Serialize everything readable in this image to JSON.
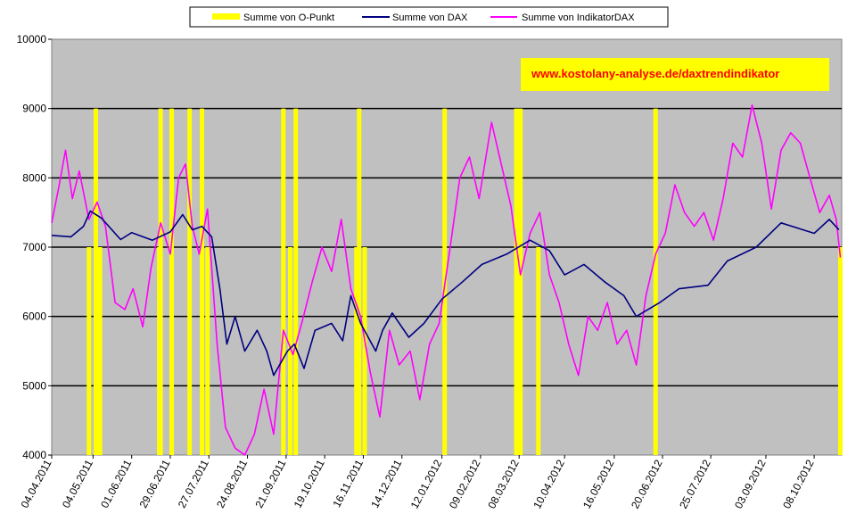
{
  "chart_data": {
    "type": "line",
    "annotation": "www.kostolany-analyse.de/daxtrendindikator",
    "ylim": [
      4000,
      10000
    ],
    "yticks": [
      4000,
      5000,
      6000,
      7000,
      8000,
      9000,
      10000
    ],
    "ytick_labels": [
      "4000",
      "5000",
      "6000",
      "7000",
      "8000",
      "9000",
      "10000"
    ],
    "x_tick_labels": [
      "04.04.2011",
      "04.05.2011",
      "01.06.2011",
      "29.06.2011",
      "27.07.2011",
      "24.08.2011",
      "21.09.2011",
      "19.10.2011",
      "16.11.2011",
      "14.12.2011",
      "12.01.2012",
      "09.02.2012",
      "08.03.2012",
      "10.04.2012",
      "16.05.2012",
      "20.06.2012",
      "25.07.2012",
      "03.09.2012",
      "08.10.2012"
    ],
    "grid": "horizontal",
    "legend_position": "top",
    "colors": {
      "plot_bg": "#c0c0c0",
      "opunkt": "#ffff00",
      "dax": "#000080",
      "indikator": "#ff00ff",
      "annotation_bg": "#ffff00",
      "annotation_text": "#ff0000"
    },
    "series": [
      {
        "name": "Summe von O-Punkt",
        "style": "vertical-bars",
        "points": [
          [
            "2011-05-01",
            7000
          ],
          [
            "2011-05-06",
            9000
          ],
          [
            "2011-05-09",
            7000
          ],
          [
            "2011-06-21",
            7000
          ],
          [
            "2011-06-22",
            9000
          ],
          [
            "2011-06-30",
            9000
          ],
          [
            "2011-07-13",
            9000
          ],
          [
            "2011-07-22",
            9000
          ],
          [
            "2011-07-26",
            7000
          ],
          [
            "2011-09-19",
            9000
          ],
          [
            "2011-09-24",
            7000
          ],
          [
            "2011-09-28",
            9000
          ],
          [
            "2011-11-11",
            7000
          ],
          [
            "2011-11-13",
            9000
          ],
          [
            "2011-11-17",
            7000
          ],
          [
            "2012-01-14",
            9000
          ],
          [
            "2012-03-06",
            9000
          ],
          [
            "2012-03-09",
            9000
          ],
          [
            "2012-03-22",
            7000
          ],
          [
            "2012-06-15",
            9000
          ],
          [
            "2012-10-27",
            7000
          ]
        ]
      },
      {
        "name": "Summe von DAX",
        "points": [
          [
            "2011-04-04",
            7170
          ],
          [
            "2011-04-18",
            7150
          ],
          [
            "2011-04-27",
            7300
          ],
          [
            "2011-05-02",
            7520
          ],
          [
            "2011-05-10",
            7420
          ],
          [
            "2011-05-24",
            7110
          ],
          [
            "2011-06-01",
            7210
          ],
          [
            "2011-06-16",
            7100
          ],
          [
            "2011-06-29",
            7220
          ],
          [
            "2011-07-08",
            7470
          ],
          [
            "2011-07-15",
            7250
          ],
          [
            "2011-07-22",
            7300
          ],
          [
            "2011-07-29",
            7150
          ],
          [
            "2011-08-04",
            6400
          ],
          [
            "2011-08-09",
            5600
          ],
          [
            "2011-08-15",
            6000
          ],
          [
            "2011-08-22",
            5500
          ],
          [
            "2011-08-31",
            5800
          ],
          [
            "2011-09-07",
            5500
          ],
          [
            "2011-09-12",
            5150
          ],
          [
            "2011-09-22",
            5500
          ],
          [
            "2011-09-27",
            5600
          ],
          [
            "2011-10-04",
            5250
          ],
          [
            "2011-10-12",
            5800
          ],
          [
            "2011-10-24",
            5900
          ],
          [
            "2011-11-01",
            5650
          ],
          [
            "2011-11-07",
            6300
          ],
          [
            "2011-11-14",
            5900
          ],
          [
            "2011-11-25",
            5500
          ],
          [
            "2011-11-30",
            5800
          ],
          [
            "2011-12-07",
            6050
          ],
          [
            "2011-12-19",
            5700
          ],
          [
            "2011-12-30",
            5900
          ],
          [
            "2012-01-12",
            6250
          ],
          [
            "2012-01-27",
            6500
          ],
          [
            "2012-02-10",
            6750
          ],
          [
            "2012-02-28",
            6900
          ],
          [
            "2012-03-16",
            7100
          ],
          [
            "2012-03-30",
            6950
          ],
          [
            "2012-04-10",
            6600
          ],
          [
            "2012-04-24",
            6750
          ],
          [
            "2012-05-09",
            6500
          ],
          [
            "2012-05-23",
            6300
          ],
          [
            "2012-06-01",
            6000
          ],
          [
            "2012-06-18",
            6200
          ],
          [
            "2012-07-02",
            6400
          ],
          [
            "2012-07-23",
            6450
          ],
          [
            "2012-08-06",
            6800
          ],
          [
            "2012-08-27",
            7000
          ],
          [
            "2012-09-14",
            7350
          ],
          [
            "2012-10-08",
            7200
          ],
          [
            "2012-10-19",
            7400
          ],
          [
            "2012-10-26",
            7250
          ]
        ]
      },
      {
        "name": "Summe von IndikatorDAX",
        "points": [
          [
            "2011-04-04",
            7350
          ],
          [
            "2011-04-09",
            7850
          ],
          [
            "2011-04-14",
            8400
          ],
          [
            "2011-04-19",
            7700
          ],
          [
            "2011-04-24",
            8100
          ],
          [
            "2011-05-01",
            7400
          ],
          [
            "2011-05-07",
            7650
          ],
          [
            "2011-05-13",
            7300
          ],
          [
            "2011-05-20",
            6200
          ],
          [
            "2011-05-27",
            6100
          ],
          [
            "2011-06-02",
            6400
          ],
          [
            "2011-06-09",
            5850
          ],
          [
            "2011-06-15",
            6700
          ],
          [
            "2011-06-22",
            7350
          ],
          [
            "2011-06-29",
            6900
          ],
          [
            "2011-07-05",
            8000
          ],
          [
            "2011-07-10",
            8200
          ],
          [
            "2011-07-15",
            7300
          ],
          [
            "2011-07-20",
            6900
          ],
          [
            "2011-07-26",
            7550
          ],
          [
            "2011-08-02",
            5600
          ],
          [
            "2011-08-08",
            4400
          ],
          [
            "2011-08-15",
            4100
          ],
          [
            "2011-08-22",
            3850
          ],
          [
            "2011-08-29",
            4300
          ],
          [
            "2011-09-05",
            4950
          ],
          [
            "2011-09-12",
            4300
          ],
          [
            "2011-09-19",
            5800
          ],
          [
            "2011-09-26",
            5450
          ],
          [
            "2011-10-03",
            5950
          ],
          [
            "2011-10-10",
            6500
          ],
          [
            "2011-10-17",
            7000
          ],
          [
            "2011-10-24",
            6650
          ],
          [
            "2011-10-31",
            7400
          ],
          [
            "2011-11-07",
            6400
          ],
          [
            "2011-11-14",
            6000
          ],
          [
            "2011-11-21",
            5200
          ],
          [
            "2011-11-28",
            4550
          ],
          [
            "2011-12-05",
            5800
          ],
          [
            "2011-12-12",
            5300
          ],
          [
            "2011-12-20",
            5500
          ],
          [
            "2011-12-27",
            4800
          ],
          [
            "2012-01-03",
            5600
          ],
          [
            "2012-01-10",
            5900
          ],
          [
            "2012-01-18",
            7000
          ],
          [
            "2012-01-25",
            8000
          ],
          [
            "2012-02-01",
            8300
          ],
          [
            "2012-02-08",
            7700
          ],
          [
            "2012-02-17",
            8800
          ],
          [
            "2012-02-24",
            8200
          ],
          [
            "2012-03-02",
            7600
          ],
          [
            "2012-03-09",
            6600
          ],
          [
            "2012-03-16",
            7200
          ],
          [
            "2012-03-23",
            7500
          ],
          [
            "2012-03-30",
            6600
          ],
          [
            "2012-04-06",
            6200
          ],
          [
            "2012-04-13",
            5600
          ],
          [
            "2012-04-20",
            5150
          ],
          [
            "2012-04-27",
            6000
          ],
          [
            "2012-05-04",
            5800
          ],
          [
            "2012-05-11",
            6200
          ],
          [
            "2012-05-18",
            5600
          ],
          [
            "2012-05-25",
            5800
          ],
          [
            "2012-06-01",
            5300
          ],
          [
            "2012-06-08",
            6300
          ],
          [
            "2012-06-15",
            6900
          ],
          [
            "2012-06-22",
            7200
          ],
          [
            "2012-06-29",
            7900
          ],
          [
            "2012-07-06",
            7500
          ],
          [
            "2012-07-13",
            7300
          ],
          [
            "2012-07-20",
            7500
          ],
          [
            "2012-07-27",
            7100
          ],
          [
            "2012-08-03",
            7700
          ],
          [
            "2012-08-10",
            8500
          ],
          [
            "2012-08-17",
            8300
          ],
          [
            "2012-08-24",
            9050
          ],
          [
            "2012-08-31",
            8500
          ],
          [
            "2012-09-07",
            7550
          ],
          [
            "2012-09-14",
            8400
          ],
          [
            "2012-09-21",
            8650
          ],
          [
            "2012-09-28",
            8500
          ],
          [
            "2012-10-05",
            8000
          ],
          [
            "2012-10-12",
            7500
          ],
          [
            "2012-10-19",
            7750
          ],
          [
            "2012-10-24",
            7400
          ],
          [
            "2012-10-27",
            6850
          ]
        ]
      }
    ]
  }
}
